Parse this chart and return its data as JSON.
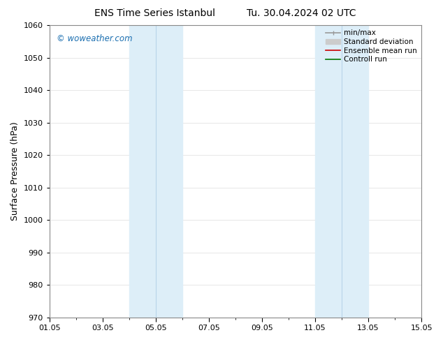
{
  "title_left": "ENS Time Series Istanbul",
  "title_right": "Tu. 30.04.2024 02 UTC",
  "ylabel": "Surface Pressure (hPa)",
  "ylim": [
    970,
    1060
  ],
  "yticks": [
    970,
    980,
    990,
    1000,
    1010,
    1020,
    1030,
    1040,
    1050,
    1060
  ],
  "xtick_labels": [
    "01.05",
    "03.05",
    "05.05",
    "07.05",
    "09.05",
    "11.05",
    "13.05",
    "15.05"
  ],
  "xtick_positions": [
    1,
    3,
    5,
    7,
    9,
    11,
    13,
    15
  ],
  "xlim": [
    1,
    15
  ],
  "shade_bands": [
    {
      "xmin": 4.0,
      "xmax": 5.0,
      "xline": 4.5
    },
    {
      "xmin": 5.0,
      "xmax": 6.0,
      "xline": 5.5
    },
    {
      "xmin": 11.0,
      "xmax": 12.0,
      "xline": 11.5
    },
    {
      "xmin": 12.0,
      "xmax": 13.0,
      "xline": 12.5
    }
  ],
  "shade_color": "#ddeef8",
  "shade_line_color": "#b8d4e8",
  "watermark": "© woweather.com",
  "watermark_color": "#1a6eb0",
  "legend_items": [
    {
      "label": "min/max",
      "color": "#999999",
      "lw": 1.2,
      "linestyle": "-"
    },
    {
      "label": "Standard deviation",
      "color": "#cccccc",
      "lw": 5,
      "linestyle": "-"
    },
    {
      "label": "Ensemble mean run",
      "color": "#cc0000",
      "lw": 1.2,
      "linestyle": "-"
    },
    {
      "label": "Controll run",
      "color": "#007700",
      "lw": 1.2,
      "linestyle": "-"
    }
  ],
  "background_color": "#ffffff",
  "grid_color": "#dddddd",
  "title_fontsize": 10,
  "tick_label_fontsize": 8,
  "ylabel_fontsize": 9,
  "legend_fontsize": 7.5
}
